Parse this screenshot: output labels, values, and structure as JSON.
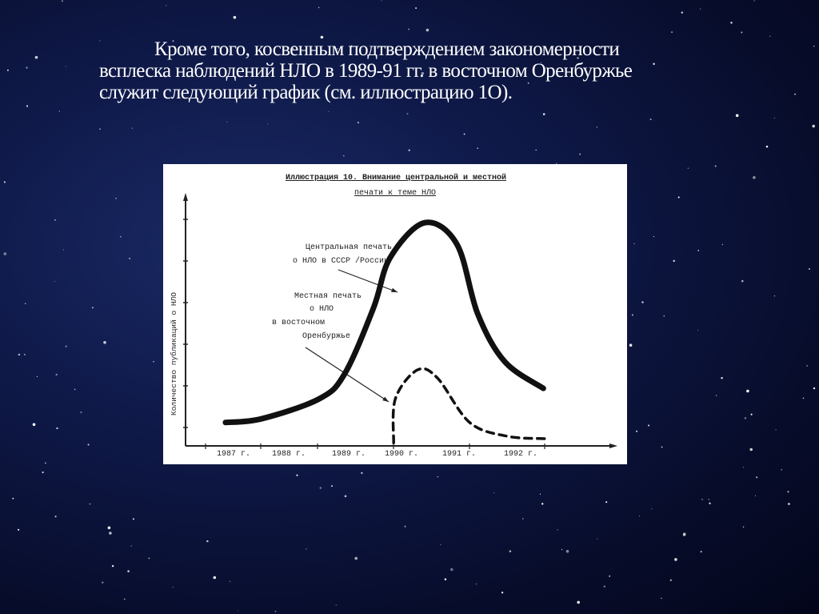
{
  "slide": {
    "text_lines": [
      "Кроме того, косвенным подтверждением закономерности",
      "всплеска наблюдений НЛО в 1989-91 гг. в восточном Оренбуржье",
      "служит следующий график (см. иллюстрацию 1О)."
    ],
    "background_color": "#0f1a4a",
    "text_color": "#ffffff"
  },
  "chart_data": {
    "type": "line",
    "title_lines": [
      "Иллюстрация 10. Внимание центральной и местной",
      "печати к теме НЛО"
    ],
    "xlabel": "",
    "ylabel": "Количество публикаций о НЛО",
    "x_tick_labels": [
      "1987 г.",
      "1988 г.",
      "1989 г.",
      "1990 г.",
      "1991 г.",
      "1992 г."
    ],
    "xlim": [
      1987,
      1993.4
    ],
    "ylim": [
      0.56,
      6.5
    ],
    "y_tick_count": 6,
    "y_tick_labels_shown": false,
    "grid": false,
    "series": [
      {
        "name": "Центральная печать о НЛО в СССР /России/",
        "label_lines": [
          "Центральная печать",
          "о НЛО в СССР /России/"
        ],
        "style": "solid",
        "x": [
          1987.36,
          1987.99,
          1988.99,
          1989.43,
          1989.93,
          1990.22,
          1990.82,
          1991.38,
          1991.74,
          1992.21,
          1992.88
        ],
        "y": [
          1.12,
          1.21,
          1.69,
          2.29,
          3.87,
          5.08,
          5.92,
          5.4,
          3.73,
          2.58,
          1.94
        ]
      },
      {
        "name": "Местная печать о НЛО в восточном Оренбуржье",
        "label_lines": [
          "Местная печать",
          "о НЛО",
          "в восточном",
          "Оренбуржье"
        ],
        "style": "dashed",
        "x": [
          1990.28,
          1990.31,
          1990.69,
          1991.04,
          1991.6,
          1992.25,
          1992.9
        ],
        "y": [
          0.63,
          1.69,
          2.38,
          2.19,
          1.12,
          0.79,
          0.73
        ]
      }
    ]
  }
}
